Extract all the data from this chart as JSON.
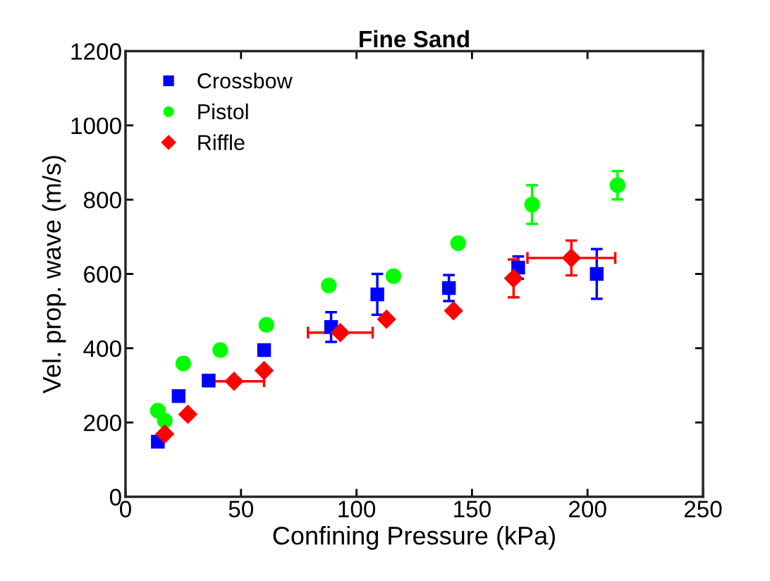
{
  "chart_data": {
    "type": "scatter",
    "title": "Fine Sand",
    "xlabel": "Confining Pressure (kPa)",
    "ylabel": "Vel. prop. wave (m/s)",
    "xlim": [
      0,
      250
    ],
    "xticks": [
      0,
      50,
      100,
      150,
      200,
      250
    ],
    "ylim": [
      0,
      1200
    ],
    "yticks": [
      0,
      200,
      400,
      600,
      800,
      1000,
      1200
    ],
    "grid": false,
    "legend": "top left",
    "series": [
      {
        "name": "Crossbow",
        "color": "#0000ff",
        "marker": "square",
        "x": [
          14,
          15,
          23,
          36,
          60,
          89,
          109,
          140,
          170,
          204
        ],
        "values": [
          148,
          null,
          271,
          313,
          395,
          457,
          545,
          562,
          617,
          600
        ],
        "errors": [
          null,
          null,
          null,
          null,
          null,
          40,
          55,
          35,
          30,
          67
        ],
        "xerrors": [
          null,
          null,
          null,
          null,
          null,
          null,
          null,
          null,
          null,
          null
        ]
      },
      {
        "name": "Pistol",
        "color": "#00ff00",
        "marker": "circle",
        "x": [
          14,
          17,
          25,
          41,
          61,
          88,
          116,
          144,
          176,
          213
        ],
        "values": [
          232,
          205,
          359,
          395,
          463,
          569,
          594,
          683,
          787,
          839
        ],
        "errors": [
          null,
          null,
          null,
          null,
          null,
          null,
          null,
          null,
          52,
          38
        ],
        "xerrors": [
          null,
          null,
          null,
          null,
          null,
          null,
          null,
          null,
          null,
          null
        ]
      },
      {
        "name": "Riffle",
        "color": "#ff0000",
        "marker": "diamond",
        "x": [
          17,
          27,
          47,
          60,
          93,
          113,
          142,
          168,
          193
        ],
        "values": [
          169,
          222,
          311,
          340,
          442,
          478,
          501,
          588,
          643
        ],
        "errors": [
          null,
          null,
          null,
          null,
          null,
          null,
          null,
          51,
          47
        ],
        "xerrors": [
          null,
          null,
          13,
          null,
          14,
          null,
          null,
          null,
          19
        ]
      }
    ]
  }
}
